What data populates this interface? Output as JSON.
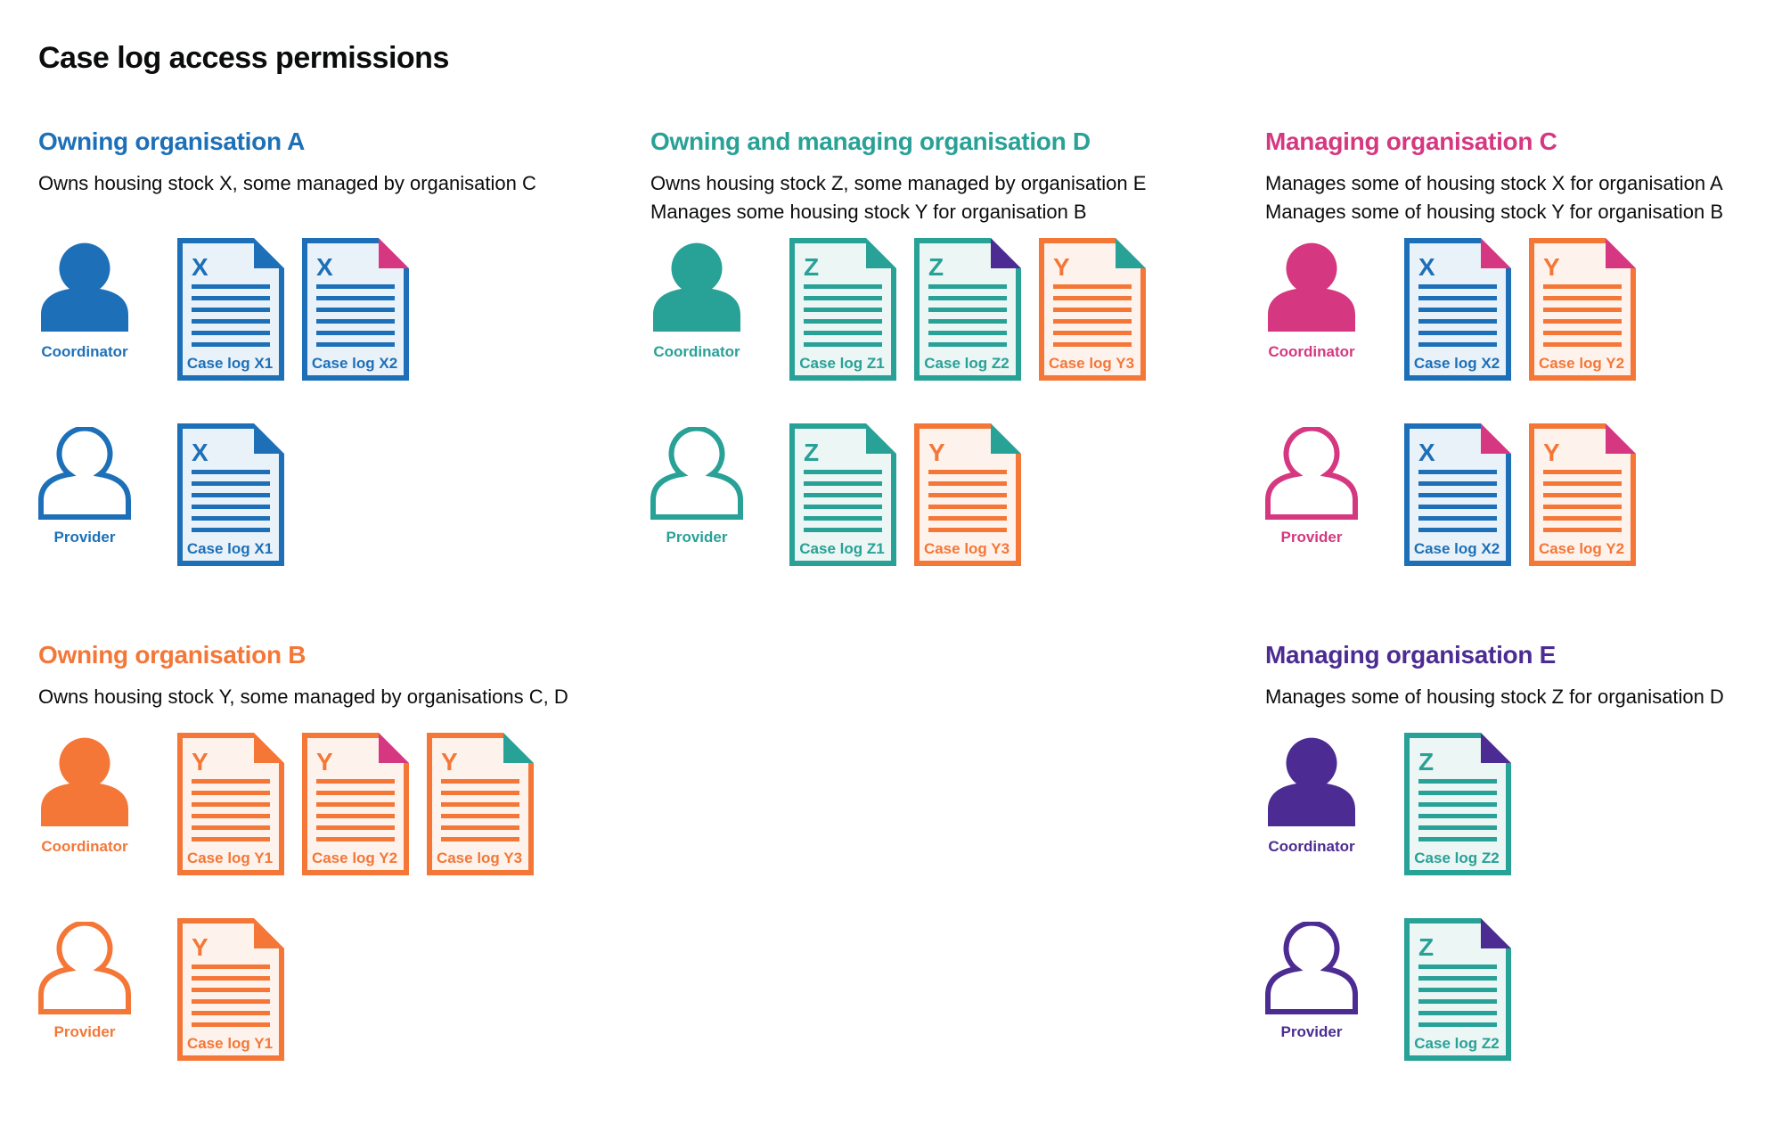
{
  "title": "Case log access permissions",
  "colors": {
    "blue": "#1d70b8",
    "teal": "#28a197",
    "orange": "#f47738",
    "pink": "#d53880",
    "purple": "#4c2c92",
    "text_black": "#0b0c0c",
    "blue_tint": "#eaf2f9",
    "teal_tint": "#ecf6f4",
    "orange_tint": "#fef3ec"
  },
  "sections": [
    {
      "heading": "Owning organisation A",
      "color": "blue",
      "subtitle_lines": [
        "Owns housing stock X, some managed by organisation C"
      ],
      "rows": [
        {
          "role_label": "Coordinator",
          "person_style": "filled",
          "docs": [
            {
              "letter": "X",
              "label": "Case log X1",
              "scheme": "blue",
              "fold": "blue"
            },
            {
              "letter": "X",
              "label": "Case log X2",
              "scheme": "blue",
              "fold": "pink"
            }
          ]
        },
        {
          "role_label": "Provider",
          "person_style": "outline",
          "docs": [
            {
              "letter": "X",
              "label": "Case log X1",
              "scheme": "blue",
              "fold": "blue"
            }
          ]
        }
      ]
    },
    {
      "heading": "Owning and managing organisation D",
      "color": "teal",
      "subtitle_lines": [
        "Owns housing stock Z, some managed by organisation E",
        "Manages some housing stock Y for organisation B"
      ],
      "rows": [
        {
          "role_label": "Coordinator",
          "person_style": "filled",
          "docs": [
            {
              "letter": "Z",
              "label": "Case log Z1",
              "scheme": "teal",
              "fold": "teal"
            },
            {
              "letter": "Z",
              "label": "Case log Z2",
              "scheme": "teal",
              "fold": "purple"
            },
            {
              "letter": "Y",
              "label": "Case log Y3",
              "scheme": "orange",
              "fold": "teal"
            }
          ]
        },
        {
          "role_label": "Provider",
          "person_style": "outline",
          "docs": [
            {
              "letter": "Z",
              "label": "Case log Z1",
              "scheme": "teal",
              "fold": "teal"
            },
            {
              "letter": "Y",
              "label": "Case log Y3",
              "scheme": "orange",
              "fold": "teal"
            }
          ]
        }
      ]
    },
    {
      "heading": "Managing organisation C",
      "color": "pink",
      "subtitle_lines": [
        "Manages some of housing stock X for organisation A",
        "Manages some of housing stock Y for organisation B"
      ],
      "rows": [
        {
          "role_label": "Coordinator",
          "person_style": "filled",
          "docs": [
            {
              "letter": "X",
              "label": "Case log X2",
              "scheme": "blue",
              "fold": "pink"
            },
            {
              "letter": "Y",
              "label": "Case log Y2",
              "scheme": "orange",
              "fold": "pink"
            }
          ]
        },
        {
          "role_label": "Provider",
          "person_style": "outline",
          "docs": [
            {
              "letter": "X",
              "label": "Case log X2",
              "scheme": "blue",
              "fold": "pink"
            },
            {
              "letter": "Y",
              "label": "Case log Y2",
              "scheme": "orange",
              "fold": "pink"
            }
          ]
        }
      ]
    },
    {
      "heading": "Owning organisation B",
      "color": "orange",
      "subtitle_lines": [
        "Owns housing stock Y, some managed by organisations C, D"
      ],
      "rows": [
        {
          "role_label": "Coordinator",
          "person_style": "filled",
          "docs": [
            {
              "letter": "Y",
              "label": "Case log Y1",
              "scheme": "orange",
              "fold": "orange"
            },
            {
              "letter": "Y",
              "label": "Case log Y2",
              "scheme": "orange",
              "fold": "pink"
            },
            {
              "letter": "Y",
              "label": "Case log Y3",
              "scheme": "orange",
              "fold": "teal"
            }
          ]
        },
        {
          "role_label": "Provider",
          "person_style": "outline",
          "docs": [
            {
              "letter": "Y",
              "label": "Case log Y1",
              "scheme": "orange",
              "fold": "orange"
            }
          ]
        }
      ]
    },
    {
      "heading": "Managing organisation E",
      "color": "purple",
      "subtitle_lines": [
        "Manages some of housing stock Z for organisation D"
      ],
      "rows": [
        {
          "role_label": "Coordinator",
          "person_style": "filled",
          "docs": [
            {
              "letter": "Z",
              "label": "Case log Z2",
              "scheme": "teal",
              "fold": "purple"
            }
          ]
        },
        {
          "role_label": "Provider",
          "person_style": "outline",
          "docs": [
            {
              "letter": "Z",
              "label": "Case log Z2",
              "scheme": "teal",
              "fold": "purple"
            }
          ]
        }
      ]
    }
  ]
}
